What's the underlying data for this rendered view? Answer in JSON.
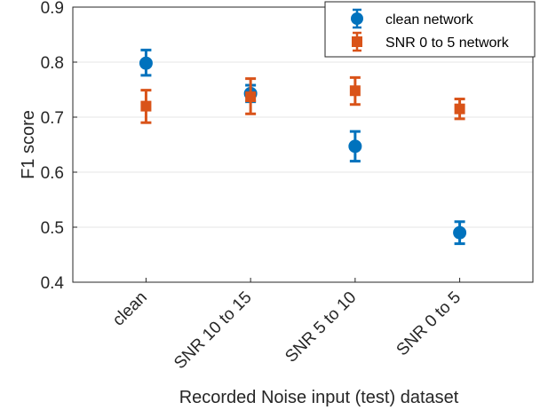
{
  "chart_data": {
    "type": "scatter",
    "xlabel": "Recorded Noise input (test) dataset",
    "ylabel": "F1 score",
    "categories": [
      "clean",
      "SNR 10 to 15",
      "SNR 5 to 10",
      "SNR 0 to 5"
    ],
    "ylim": [
      0.4,
      0.9
    ],
    "yticks": [
      "0.4",
      "0.5",
      "0.6",
      "0.7",
      "0.8",
      "0.9"
    ],
    "grid": "horizontal",
    "legend_position": "top-right",
    "series": [
      {
        "name": "clean network",
        "marker": "circle",
        "color": "#0072BD",
        "values": [
          0.798,
          0.743,
          0.647,
          0.49
        ],
        "error_low": [
          0.776,
          0.728,
          0.62,
          0.47
        ],
        "error_high": [
          0.822,
          0.758,
          0.674,
          0.51
        ]
      },
      {
        "name": "SNR 0 to 5 network",
        "marker": "square",
        "color": "#D95319",
        "values": [
          0.72,
          0.737,
          0.748,
          0.715
        ],
        "error_low": [
          0.69,
          0.706,
          0.723,
          0.697
        ],
        "error_high": [
          0.749,
          0.77,
          0.772,
          0.733
        ]
      }
    ]
  }
}
